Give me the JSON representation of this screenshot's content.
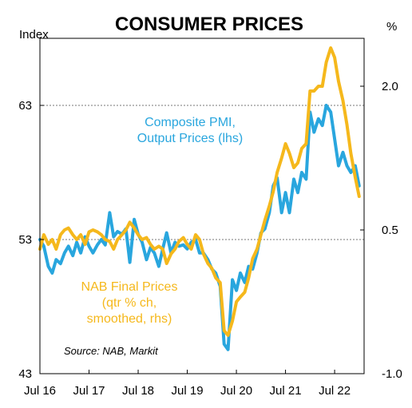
{
  "chart_data": {
    "type": "line",
    "title": "CONSUMER PRICES",
    "left_axis_unit": "Index",
    "right_axis_unit": "%",
    "left_ylim": [
      43,
      68
    ],
    "right_ylim": [
      -1.0,
      2.5
    ],
    "xlim": [
      2016.5,
      2023.1
    ],
    "left_ticks": [
      {
        "value": 43,
        "label": "43"
      },
      {
        "value": 53,
        "label": "53"
      },
      {
        "value": 63,
        "label": "63"
      }
    ],
    "right_ticks": [
      {
        "value": -1.0,
        "label": "-1.0"
      },
      {
        "value": 0.5,
        "label": "0.5"
      },
      {
        "value": 2.0,
        "label": "2.0"
      }
    ],
    "x_ticks": [
      {
        "value": 2016.5,
        "label": "Jul 16"
      },
      {
        "value": 2017.5,
        "label": "Jul 17"
      },
      {
        "value": 2018.5,
        "label": "Jul 18"
      },
      {
        "value": 2019.5,
        "label": "Jul 19"
      },
      {
        "value": 2020.5,
        "label": "Jul 20"
      },
      {
        "value": 2021.5,
        "label": "Jul 21"
      },
      {
        "value": 2022.5,
        "label": "Jul 22"
      }
    ],
    "gridlines_left": [
      53,
      63
    ],
    "series": [
      {
        "name": "Composite PMI, Output Prices (lhs)",
        "axis": "left",
        "color": "#29a6de",
        "points": [
          [
            2016.5,
            53.0
          ],
          [
            2016.58,
            52.5
          ],
          [
            2016.67,
            51.0
          ],
          [
            2016.75,
            50.5
          ],
          [
            2016.83,
            51.5
          ],
          [
            2016.92,
            51.2
          ],
          [
            2017.0,
            52.0
          ],
          [
            2017.08,
            52.5
          ],
          [
            2017.17,
            51.8
          ],
          [
            2017.25,
            52.8
          ],
          [
            2017.33,
            52.0
          ],
          [
            2017.42,
            53.2
          ],
          [
            2017.5,
            52.5
          ],
          [
            2017.58,
            52.0
          ],
          [
            2017.67,
            52.6
          ],
          [
            2017.75,
            53.0
          ],
          [
            2017.83,
            52.6
          ],
          [
            2017.92,
            55.0
          ],
          [
            2018.0,
            53.2
          ],
          [
            2018.08,
            53.6
          ],
          [
            2018.17,
            53.4
          ],
          [
            2018.25,
            53.8
          ],
          [
            2018.33,
            51.3
          ],
          [
            2018.42,
            54.5
          ],
          [
            2018.5,
            53.4
          ],
          [
            2018.58,
            52.8
          ],
          [
            2018.67,
            51.5
          ],
          [
            2018.75,
            52.4
          ],
          [
            2018.83,
            52.0
          ],
          [
            2018.92,
            51.0
          ],
          [
            2019.0,
            52.3
          ],
          [
            2019.08,
            53.5
          ],
          [
            2019.17,
            52.0
          ],
          [
            2019.25,
            52.8
          ],
          [
            2019.33,
            52.5
          ],
          [
            2019.42,
            52.6
          ],
          [
            2019.5,
            52.3
          ],
          [
            2019.58,
            52.8
          ],
          [
            2019.67,
            53.0
          ],
          [
            2019.75,
            52.0
          ],
          [
            2019.83,
            52.0
          ],
          [
            2019.92,
            51.5
          ],
          [
            2020.0,
            50.8
          ],
          [
            2020.08,
            50.5
          ],
          [
            2020.17,
            49.5
          ],
          [
            2020.25,
            45.2
          ],
          [
            2020.33,
            44.8
          ],
          [
            2020.42,
            50.0
          ],
          [
            2020.5,
            49.2
          ],
          [
            2020.58,
            50.5
          ],
          [
            2020.67,
            49.8
          ],
          [
            2020.75,
            51.0
          ],
          [
            2020.83,
            50.8
          ],
          [
            2020.92,
            52.0
          ],
          [
            2021.0,
            53.5
          ],
          [
            2021.08,
            53.8
          ],
          [
            2021.17,
            55.0
          ],
          [
            2021.25,
            57.0
          ],
          [
            2021.33,
            57.6
          ],
          [
            2021.42,
            55.0
          ],
          [
            2021.5,
            56.5
          ],
          [
            2021.58,
            55.0
          ],
          [
            2021.67,
            57.5
          ],
          [
            2021.75,
            56.5
          ],
          [
            2021.83,
            58.0
          ],
          [
            2021.92,
            57.5
          ],
          [
            2022.0,
            62.5
          ],
          [
            2022.08,
            61.0
          ],
          [
            2022.17,
            62.0
          ],
          [
            2022.25,
            61.5
          ],
          [
            2022.33,
            63.0
          ],
          [
            2022.42,
            62.5
          ],
          [
            2022.5,
            60.5
          ],
          [
            2022.58,
            58.5
          ],
          [
            2022.67,
            59.5
          ],
          [
            2022.75,
            58.5
          ],
          [
            2022.83,
            58.0
          ],
          [
            2022.92,
            58.5
          ],
          [
            2023.0,
            57.0
          ]
        ]
      },
      {
        "name": "NAB Final Prices (qtr % ch, smoothed, rhs)",
        "axis": "right",
        "color": "#f5b81c",
        "points": [
          [
            2016.5,
            0.3
          ],
          [
            2016.58,
            0.45
          ],
          [
            2016.67,
            0.35
          ],
          [
            2016.75,
            0.4
          ],
          [
            2016.83,
            0.3
          ],
          [
            2016.92,
            0.45
          ],
          [
            2017.0,
            0.5
          ],
          [
            2017.08,
            0.52
          ],
          [
            2017.17,
            0.45
          ],
          [
            2017.25,
            0.4
          ],
          [
            2017.33,
            0.45
          ],
          [
            2017.42,
            0.35
          ],
          [
            2017.5,
            0.48
          ],
          [
            2017.58,
            0.5
          ],
          [
            2017.67,
            0.48
          ],
          [
            2017.75,
            0.45
          ],
          [
            2017.83,
            0.4
          ],
          [
            2017.92,
            0.38
          ],
          [
            2018.0,
            0.3
          ],
          [
            2018.08,
            0.4
          ],
          [
            2018.17,
            0.45
          ],
          [
            2018.25,
            0.5
          ],
          [
            2018.33,
            0.58
          ],
          [
            2018.42,
            0.52
          ],
          [
            2018.5,
            0.45
          ],
          [
            2018.58,
            0.4
          ],
          [
            2018.67,
            0.42
          ],
          [
            2018.75,
            0.35
          ],
          [
            2018.83,
            0.3
          ],
          [
            2018.92,
            0.33
          ],
          [
            2019.0,
            0.3
          ],
          [
            2019.08,
            0.15
          ],
          [
            2019.17,
            0.25
          ],
          [
            2019.25,
            0.3
          ],
          [
            2019.33,
            0.38
          ],
          [
            2019.42,
            0.42
          ],
          [
            2019.5,
            0.35
          ],
          [
            2019.58,
            0.3
          ],
          [
            2019.67,
            0.45
          ],
          [
            2019.75,
            0.4
          ],
          [
            2019.83,
            0.25
          ],
          [
            2019.92,
            0.15
          ],
          [
            2020.0,
            0.1
          ],
          [
            2020.08,
            0.0
          ],
          [
            2020.17,
            -0.05
          ],
          [
            2020.25,
            -0.55
          ],
          [
            2020.33,
            -0.6
          ],
          [
            2020.42,
            -0.45
          ],
          [
            2020.5,
            -0.25
          ],
          [
            2020.58,
            -0.2
          ],
          [
            2020.67,
            -0.15
          ],
          [
            2020.75,
            0.0
          ],
          [
            2020.83,
            0.2
          ],
          [
            2020.92,
            0.3
          ],
          [
            2021.0,
            0.45
          ],
          [
            2021.08,
            0.6
          ],
          [
            2021.17,
            0.75
          ],
          [
            2021.25,
            0.9
          ],
          [
            2021.33,
            1.1
          ],
          [
            2021.42,
            1.25
          ],
          [
            2021.5,
            1.4
          ],
          [
            2021.58,
            1.3
          ],
          [
            2021.67,
            1.15
          ],
          [
            2021.75,
            1.2
          ],
          [
            2021.83,
            1.35
          ],
          [
            2021.92,
            1.4
          ],
          [
            2022.0,
            1.95
          ],
          [
            2022.08,
            1.95
          ],
          [
            2022.17,
            2.0
          ],
          [
            2022.25,
            2.0
          ],
          [
            2022.33,
            2.25
          ],
          [
            2022.42,
            2.4
          ],
          [
            2022.5,
            2.3
          ],
          [
            2022.58,
            2.05
          ],
          [
            2022.67,
            1.85
          ],
          [
            2022.75,
            1.6
          ],
          [
            2022.83,
            1.3
          ],
          [
            2022.92,
            1.05
          ],
          [
            2023.0,
            0.85
          ]
        ]
      }
    ],
    "annotations": {
      "blue_label": [
        "Composite PMI,",
        "Output Prices (lhs)"
      ],
      "gold_label": [
        "NAB Final Prices",
        "(qtr % ch,",
        "smoothed, rhs)"
      ],
      "source": "Source: NAB, Markit"
    }
  }
}
